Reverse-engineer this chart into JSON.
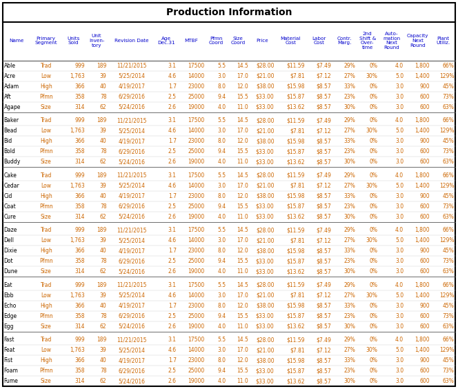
{
  "title": "Production Information",
  "headers": [
    "Name",
    "Primary\nSegment",
    "Units\nSold",
    "Unit\nInven-\ntory",
    "Revision Date",
    "Age\nDec.31",
    "MTBF",
    "Pfmn\nCoord",
    "Size\nCoord",
    "Price",
    "Material\nCost",
    "Labor\nCost",
    "Contr.\nMarg.",
    "2nd\nShift &\nOver-\ntime",
    "Auto-\nmation\nNext\nRound",
    "Capacity\nNext\nRound",
    "Plant\nUtiliz."
  ],
  "groups": [
    {
      "names": [
        "Able",
        "Acre",
        "Adam",
        "Aft",
        "Agape"
      ],
      "segments": [
        "Trad",
        "Low",
        "High",
        "Pfmn",
        "Size"
      ],
      "units_sold": [
        "999",
        "1,763",
        "366",
        "358",
        "314"
      ],
      "inventory": [
        "189",
        "39",
        "40",
        "78",
        "62"
      ],
      "revision_dates": [
        "11/21/2015",
        "5/25/2014",
        "4/19/2017",
        "6/29/2016",
        "5/24/2016"
      ],
      "age": [
        "3.1",
        "4.6",
        "1.7",
        "2.5",
        "2.6"
      ],
      "mtbf": [
        "17500",
        "14000",
        "23000",
        "25000",
        "19000"
      ],
      "pfmn": [
        "5.5",
        "3.0",
        "8.0",
        "9.4",
        "4.0"
      ],
      "size": [
        "14.5",
        "17.0",
        "12.0",
        "15.5",
        "11.0"
      ],
      "price": [
        "$28.00",
        "$21.00",
        "$38.00",
        "$33.00",
        "$33.00"
      ],
      "mat_cost": [
        "$11.59",
        "$7.81",
        "$15.98",
        "$15.87",
        "$13.62"
      ],
      "labor_cost": [
        "$7.49",
        "$7.12",
        "$8.57",
        "$8.57",
        "$8.57"
      ],
      "contr_marg": [
        "29%",
        "27%",
        "33%",
        "23%",
        "30%"
      ],
      "shift2": [
        "0%",
        "30%",
        "0%",
        "0%",
        "0%"
      ],
      "automation": [
        "4.0",
        "5.0",
        "3.0",
        "3.0",
        "3.0"
      ],
      "capacity": [
        "1,800",
        "1,400",
        "900",
        "600",
        "600"
      ],
      "plant_utiliz": [
        "66%",
        "129%",
        "45%",
        "73%",
        "63%"
      ]
    },
    {
      "names": [
        "Baker",
        "Bead",
        "Bid",
        "Bold",
        "Buddy"
      ],
      "segments": [
        "Trad",
        "Low",
        "High",
        "Pfmn",
        "Size"
      ],
      "units_sold": [
        "999",
        "1,763",
        "366",
        "358",
        "314"
      ],
      "inventory": [
        "189",
        "39",
        "40",
        "78",
        "62"
      ],
      "revision_dates": [
        "11/21/2015",
        "5/25/2014",
        "4/19/2017",
        "6/29/2016",
        "5/24/2016"
      ],
      "age": [
        "3.1",
        "4.6",
        "1.7",
        "2.5",
        "2.6"
      ],
      "mtbf": [
        "17500",
        "14000",
        "23000",
        "25000",
        "19000"
      ],
      "pfmn": [
        "5.5",
        "3.0",
        "8.0",
        "9.4",
        "4.0"
      ],
      "size": [
        "14.5",
        "17.0",
        "12.0",
        "15.5",
        "11.0"
      ],
      "price": [
        "$28.00",
        "$21.00",
        "$38.00",
        "$33.00",
        "$33.00"
      ],
      "mat_cost": [
        "$11.59",
        "$7.81",
        "$15.98",
        "$15.87",
        "$13.62"
      ],
      "labor_cost": [
        "$7.49",
        "$7.12",
        "$8.57",
        "$8.57",
        "$8.57"
      ],
      "contr_marg": [
        "29%",
        "27%",
        "33%",
        "23%",
        "30%"
      ],
      "shift2": [
        "0%",
        "30%",
        "0%",
        "0%",
        "0%"
      ],
      "automation": [
        "4.0",
        "5.0",
        "3.0",
        "3.0",
        "3.0"
      ],
      "capacity": [
        "1,800",
        "1,400",
        "900",
        "600",
        "600"
      ],
      "plant_utiliz": [
        "66%",
        "129%",
        "45%",
        "73%",
        "63%"
      ]
    },
    {
      "names": [
        "Cake",
        "Cedar",
        "Cid",
        "Coat",
        "Cure"
      ],
      "segments": [
        "Trad",
        "Low",
        "High",
        "Pfmn",
        "Size"
      ],
      "units_sold": [
        "999",
        "1,763",
        "366",
        "358",
        "314"
      ],
      "inventory": [
        "189",
        "39",
        "40",
        "78",
        "62"
      ],
      "revision_dates": [
        "11/21/2015",
        "5/25/2014",
        "4/19/2017",
        "6/29/2016",
        "5/24/2016"
      ],
      "age": [
        "3.1",
        "4.6",
        "1.7",
        "2.5",
        "2.6"
      ],
      "mtbf": [
        "17500",
        "14000",
        "23000",
        "25000",
        "19000"
      ],
      "pfmn": [
        "5.5",
        "3.0",
        "8.0",
        "9.4",
        "4.0"
      ],
      "size": [
        "14.5",
        "17.0",
        "12.0",
        "15.5",
        "11.0"
      ],
      "price": [
        "$28.00",
        "$21.00",
        "$38.00",
        "$33.00",
        "$33.00"
      ],
      "mat_cost": [
        "$11.59",
        "$7.81",
        "$15.98",
        "$15.87",
        "$13.62"
      ],
      "labor_cost": [
        "$7.49",
        "$7.12",
        "$8.57",
        "$8.57",
        "$8.57"
      ],
      "contr_marg": [
        "29%",
        "27%",
        "33%",
        "23%",
        "30%"
      ],
      "shift2": [
        "0%",
        "30%",
        "0%",
        "0%",
        "0%"
      ],
      "automation": [
        "4.0",
        "5.0",
        "3.0",
        "3.0",
        "3.0"
      ],
      "capacity": [
        "1,800",
        "1,400",
        "900",
        "600",
        "600"
      ],
      "plant_utiliz": [
        "66%",
        "129%",
        "45%",
        "73%",
        "63%"
      ]
    },
    {
      "names": [
        "Daze",
        "Dell",
        "Dixie",
        "Dot",
        "Dune"
      ],
      "segments": [
        "Trad",
        "Low",
        "High",
        "Pfmn",
        "Size"
      ],
      "units_sold": [
        "999",
        "1,763",
        "366",
        "358",
        "314"
      ],
      "inventory": [
        "189",
        "39",
        "40",
        "78",
        "62"
      ],
      "revision_dates": [
        "11/21/2015",
        "5/25/2014",
        "4/19/2017",
        "6/29/2016",
        "5/24/2016"
      ],
      "age": [
        "3.1",
        "4.6",
        "1.7",
        "2.5",
        "2.6"
      ],
      "mtbf": [
        "17500",
        "14000",
        "23000",
        "25000",
        "19000"
      ],
      "pfmn": [
        "5.5",
        "3.0",
        "8.0",
        "9.4",
        "4.0"
      ],
      "size": [
        "14.5",
        "17.0",
        "12.0",
        "15.5",
        "11.0"
      ],
      "price": [
        "$28.00",
        "$21.00",
        "$38.00",
        "$33.00",
        "$33.00"
      ],
      "mat_cost": [
        "$11.59",
        "$7.81",
        "$15.98",
        "$15.87",
        "$13.62"
      ],
      "labor_cost": [
        "$7.49",
        "$7.12",
        "$8.57",
        "$8.57",
        "$8.57"
      ],
      "contr_marg": [
        "29%",
        "27%",
        "33%",
        "23%",
        "30%"
      ],
      "shift2": [
        "0%",
        "30%",
        "0%",
        "0%",
        "0%"
      ],
      "automation": [
        "4.0",
        "5.0",
        "3.0",
        "3.0",
        "3.0"
      ],
      "capacity": [
        "1,800",
        "1,400",
        "900",
        "600",
        "600"
      ],
      "plant_utiliz": [
        "66%",
        "129%",
        "45%",
        "73%",
        "63%"
      ]
    },
    {
      "names": [
        "Eat",
        "Ebb",
        "Echo",
        "Edge",
        "Egg"
      ],
      "segments": [
        "Trad",
        "Low",
        "High",
        "Pfmn",
        "Size"
      ],
      "units_sold": [
        "999",
        "1,763",
        "366",
        "358",
        "314"
      ],
      "inventory": [
        "189",
        "39",
        "40",
        "78",
        "62"
      ],
      "revision_dates": [
        "11/21/2015",
        "5/25/2014",
        "4/19/2017",
        "6/29/2016",
        "5/24/2016"
      ],
      "age": [
        "3.1",
        "4.6",
        "1.7",
        "2.5",
        "2.6"
      ],
      "mtbf": [
        "17500",
        "14000",
        "23000",
        "25000",
        "19000"
      ],
      "pfmn": [
        "5.5",
        "3.0",
        "8.0",
        "9.4",
        "4.0"
      ],
      "size": [
        "14.5",
        "17.0",
        "12.0",
        "15.5",
        "11.0"
      ],
      "price": [
        "$28.00",
        "$21.00",
        "$38.00",
        "$33.00",
        "$33.00"
      ],
      "mat_cost": [
        "$11.59",
        "$7.81",
        "$15.98",
        "$15.87",
        "$13.62"
      ],
      "labor_cost": [
        "$7.49",
        "$7.12",
        "$8.57",
        "$8.57",
        "$8.57"
      ],
      "contr_marg": [
        "29%",
        "27%",
        "33%",
        "23%",
        "30%"
      ],
      "shift2": [
        "0%",
        "30%",
        "0%",
        "0%",
        "0%"
      ],
      "automation": [
        "4.0",
        "5.0",
        "3.0",
        "3.0",
        "3.0"
      ],
      "capacity": [
        "1,800",
        "1,400",
        "900",
        "600",
        "600"
      ],
      "plant_utiliz": [
        "66%",
        "129%",
        "45%",
        "73%",
        "63%"
      ]
    },
    {
      "names": [
        "Fast",
        "Feat",
        "Fist",
        "Foam",
        "Fume"
      ],
      "segments": [
        "Trad",
        "Low",
        "High",
        "Pfmn",
        "Size"
      ],
      "units_sold": [
        "999",
        "1,763",
        "366",
        "358",
        "314"
      ],
      "inventory": [
        "189",
        "39",
        "40",
        "78",
        "62"
      ],
      "revision_dates": [
        "11/21/2015",
        "5/25/2014",
        "4/19/2017",
        "6/29/2016",
        "5/24/2016"
      ],
      "age": [
        "3.1",
        "4.6",
        "1.7",
        "2.5",
        "2.6"
      ],
      "mtbf": [
        "17500",
        "14000",
        "23000",
        "25000",
        "19000"
      ],
      "pfmn": [
        "5.5",
        "3.0",
        "8.0",
        "9.4",
        "4.0"
      ],
      "size": [
        "14.5",
        "17.0",
        "12.0",
        "15.5",
        "11.0"
      ],
      "price": [
        "$28.00",
        "$21.00",
        "$38.00",
        "$33.00",
        "$33.00"
      ],
      "mat_cost": [
        "$11.59",
        "$7.81",
        "$15.98",
        "$15.87",
        "$13.62"
      ],
      "labor_cost": [
        "$7.49",
        "$7.12",
        "$8.57",
        "$8.57",
        "$8.57"
      ],
      "contr_marg": [
        "29%",
        "27%",
        "33%",
        "23%",
        "30%"
      ],
      "shift2": [
        "0%",
        "30%",
        "0%",
        "0%",
        "0%"
      ],
      "automation": [
        "4.0",
        "5.0",
        "3.0",
        "3.0",
        "3.0"
      ],
      "capacity": [
        "1,800",
        "1,400",
        "900",
        "600",
        "600"
      ],
      "plant_utiliz": [
        "66%",
        "129%",
        "45%",
        "73%",
        "63%"
      ]
    }
  ],
  "text_color_name": "#000000",
  "text_color_data": "#cc6600",
  "text_color_header": "#0000cc",
  "title_color": "#000000",
  "outer_border_color": "#000000",
  "inner_line_color": "#999999",
  "group_sep_color": "#555555",
  "title_sep_color": "#000000",
  "header_sep_color": "#555555",
  "fig_w": 6.64,
  "fig_h": 5.64,
  "dpi": 100
}
